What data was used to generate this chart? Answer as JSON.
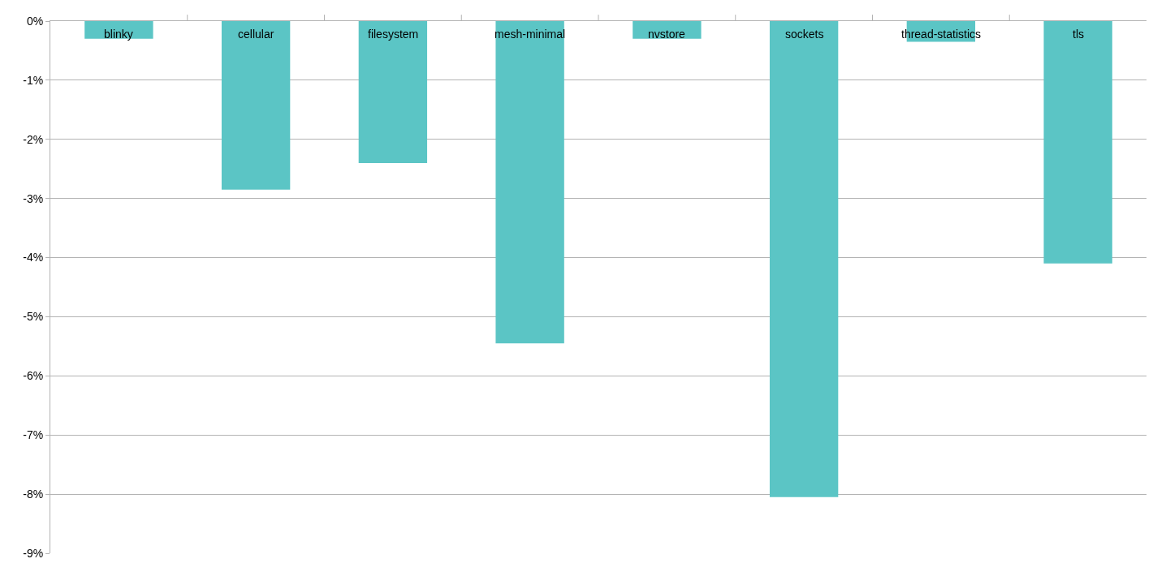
{
  "chart_data": {
    "type": "bar",
    "categories": [
      "blinky",
      "cellular",
      "filesystem",
      "mesh-minimal",
      "nvstore",
      "sockets",
      "thread-statistics",
      "tls"
    ],
    "values": [
      -0.3,
      -2.85,
      -2.4,
      -5.45,
      -0.3,
      -8.05,
      -0.35,
      -4.1
    ],
    "color": "#5bc5c5",
    "ylim": [
      -9,
      0
    ],
    "yticks": [
      {
        "value": 0,
        "label": "0%"
      },
      {
        "value": -1,
        "label": "-1%"
      },
      {
        "value": -2,
        "label": "-2%"
      },
      {
        "value": -3,
        "label": "-3%"
      },
      {
        "value": -4,
        "label": "-4%"
      },
      {
        "value": -5,
        "label": "-5%"
      },
      {
        "value": -6,
        "label": "-6%"
      },
      {
        "value": -7,
        "label": "-7%"
      },
      {
        "value": -8,
        "label": "-8%"
      },
      {
        "value": -9,
        "label": "-9%"
      }
    ],
    "grid": "y"
  }
}
